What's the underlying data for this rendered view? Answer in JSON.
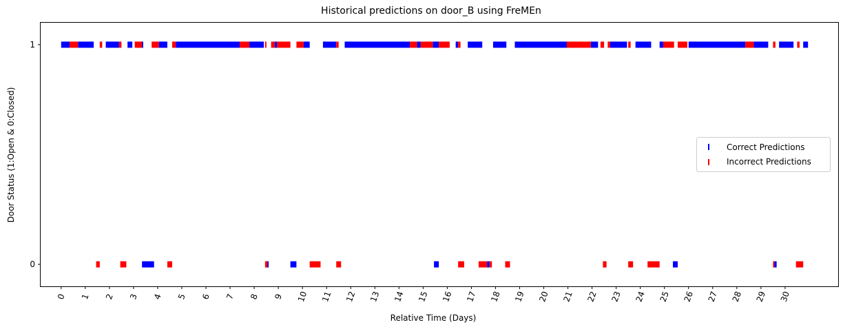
{
  "chart_data": {
    "type": "scatter",
    "title": "Historical predictions on door_B using FreMEn",
    "xlabel": "Relative Time (Days)",
    "ylabel": "Door Status (1:Open & 0:Closed)",
    "xlim": [
      -0.85,
      32.2
    ],
    "ylim": [
      -0.1,
      1.1
    ],
    "x_ticks": [
      0,
      1,
      2,
      3,
      4,
      5,
      6,
      7,
      8,
      9,
      10,
      11,
      12,
      13,
      14,
      15,
      16,
      17,
      18,
      19,
      20,
      21,
      22,
      23,
      24,
      25,
      26,
      27,
      28,
      29,
      30
    ],
    "x_tick_labels": [
      "0",
      "1",
      "2",
      "3",
      "4",
      "5",
      "6",
      "7",
      "8",
      "9",
      "10",
      "11",
      "12",
      "13",
      "14",
      "15",
      "16",
      "17",
      "18",
      "19",
      "20",
      "21",
      "22",
      "23",
      "24",
      "25",
      "26",
      "27",
      "28",
      "29",
      "30"
    ],
    "y_ticks": [
      0,
      1
    ],
    "y_tick_labels": [
      "0",
      "1"
    ],
    "grid": false,
    "legend_position": "center-right",
    "colors": {
      "correct": "#0000ff",
      "incorrect": "#ff0000"
    },
    "series": [
      {
        "name": "Correct Predictions",
        "color": "#0000ff",
        "segments_open": [
          [
            0.0,
            0.35
          ],
          [
            0.7,
            1.35
          ],
          [
            1.85,
            2.4
          ],
          [
            2.75,
            2.95
          ],
          [
            3.3,
            3.4
          ],
          [
            4.05,
            4.4
          ],
          [
            4.75,
            7.4
          ],
          [
            7.8,
            8.4
          ],
          [
            8.85,
            8.95
          ],
          [
            10.05,
            10.3
          ],
          [
            10.85,
            11.4
          ],
          [
            11.75,
            14.45
          ],
          [
            14.75,
            14.9
          ],
          [
            15.4,
            15.65
          ],
          [
            16.35,
            16.45
          ],
          [
            16.85,
            17.45
          ],
          [
            17.9,
            18.45
          ],
          [
            18.8,
            21.0
          ],
          [
            21.95,
            22.25
          ],
          [
            22.75,
            23.45
          ],
          [
            23.8,
            24.45
          ],
          [
            24.8,
            24.95
          ],
          [
            26.0,
            28.35
          ],
          [
            28.7,
            29.3
          ],
          [
            29.75,
            30.35
          ],
          [
            30.75,
            30.95
          ]
        ],
        "segments_closed": [
          [
            3.35,
            3.85
          ],
          [
            8.5,
            8.6
          ],
          [
            9.5,
            9.75
          ],
          [
            15.45,
            15.65
          ],
          [
            17.65,
            17.75
          ],
          [
            25.35,
            25.55
          ],
          [
            29.55,
            29.65
          ]
        ]
      },
      {
        "name": "Incorrect Predictions",
        "color": "#ff0000",
        "segments_open": [
          [
            0.35,
            0.7
          ],
          [
            1.6,
            1.7
          ],
          [
            2.4,
            2.5
          ],
          [
            3.05,
            3.35
          ],
          [
            3.75,
            4.05
          ],
          [
            4.6,
            4.75
          ],
          [
            7.4,
            7.8
          ],
          [
            8.45,
            8.5
          ],
          [
            8.7,
            8.85
          ],
          [
            8.95,
            9.5
          ],
          [
            9.75,
            10.05
          ],
          [
            11.4,
            11.5
          ],
          [
            14.45,
            14.75
          ],
          [
            14.9,
            15.4
          ],
          [
            15.65,
            16.1
          ],
          [
            16.45,
            16.55
          ],
          [
            20.95,
            21.95
          ],
          [
            22.35,
            22.5
          ],
          [
            22.65,
            22.75
          ],
          [
            23.5,
            23.6
          ],
          [
            24.95,
            25.4
          ],
          [
            25.55,
            25.95
          ],
          [
            28.35,
            28.7
          ],
          [
            29.5,
            29.6
          ],
          [
            30.5,
            30.6
          ]
        ],
        "segments_closed": [
          [
            1.45,
            1.6
          ],
          [
            2.45,
            2.7
          ],
          [
            4.4,
            4.6
          ],
          [
            8.45,
            8.55
          ],
          [
            10.3,
            10.75
          ],
          [
            11.4,
            11.6
          ],
          [
            16.45,
            16.7
          ],
          [
            17.3,
            17.65
          ],
          [
            17.75,
            17.85
          ],
          [
            18.4,
            18.6
          ],
          [
            22.45,
            22.6
          ],
          [
            23.5,
            23.7
          ],
          [
            24.3,
            24.8
          ],
          [
            29.5,
            29.55
          ],
          [
            30.45,
            30.75
          ]
        ]
      }
    ]
  }
}
